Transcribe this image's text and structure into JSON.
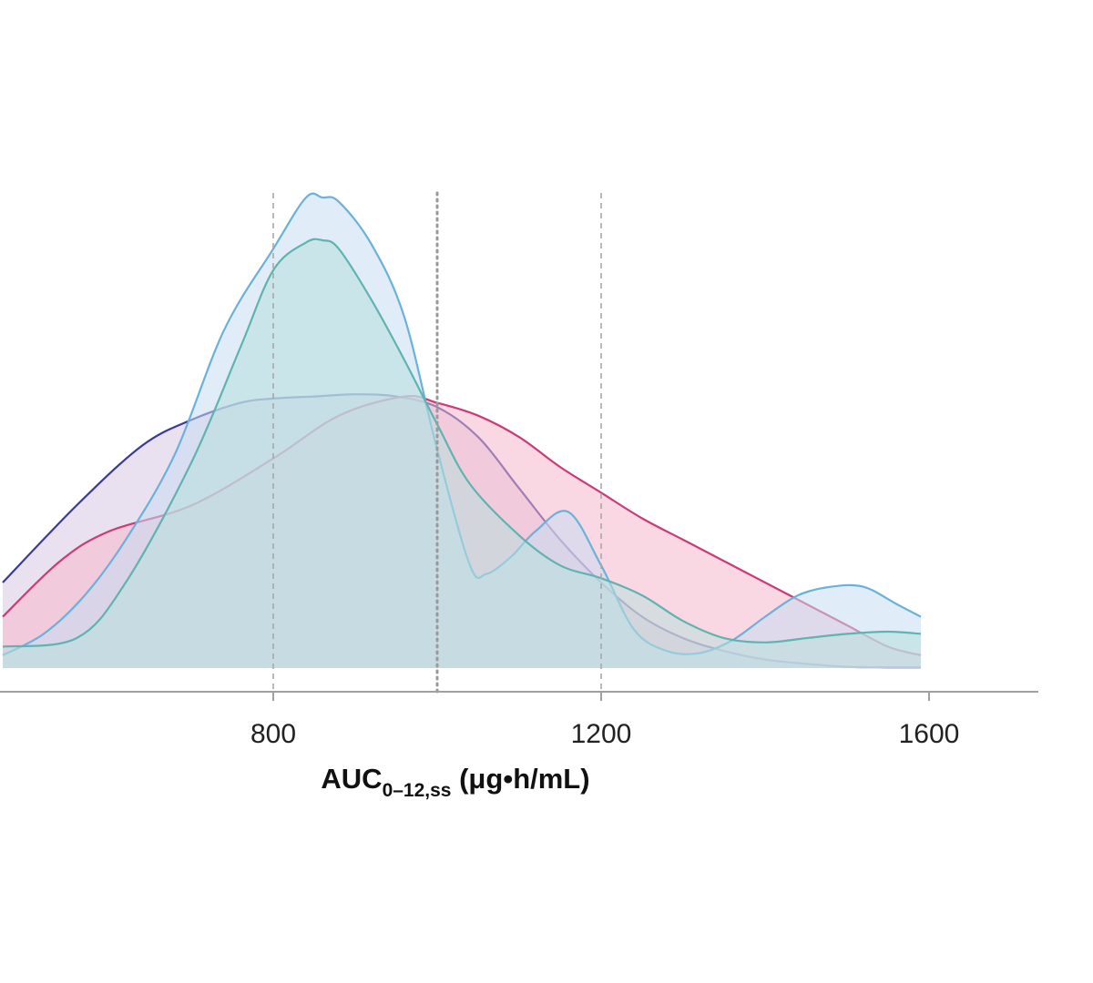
{
  "chart_data": {
    "type": "area",
    "xlabel": {
      "main": "AUC",
      "subscript": "0–12,ss",
      "unit": " (μg•h/mL)"
    },
    "xlim": [
      470,
      1600
    ],
    "x_ticks": [
      800,
      1200,
      1600
    ],
    "x_tick_labels": [
      "800",
      "1200",
      "1600"
    ],
    "reference_lines": [
      {
        "x": 800,
        "style": "dashed"
      },
      {
        "x": 1000,
        "style": "dotted"
      },
      {
        "x": 1200,
        "style": "dashed"
      }
    ],
    "series": [
      {
        "color": "#3a3a97",
        "fill": "#d8c8e4",
        "x": [
          470,
          560,
          640,
          700,
          760,
          800,
          850,
          900,
          950,
          1000,
          1050,
          1100,
          1150,
          1200,
          1250,
          1300,
          1350,
          1400,
          1450,
          1500,
          1550,
          1590
        ],
        "y": [
          0.2,
          0.38,
          0.52,
          0.58,
          0.62,
          0.63,
          0.635,
          0.64,
          0.635,
          0.61,
          0.54,
          0.42,
          0.3,
          0.2,
          0.12,
          0.07,
          0.04,
          0.02,
          0.01,
          0.003,
          0.002,
          0.002
        ]
      },
      {
        "color": "#cc3b77",
        "fill": "#f6b8cc",
        "x": [
          470,
          540,
          600,
          700,
          800,
          880,
          960,
          1000,
          1050,
          1100,
          1150,
          1200,
          1250,
          1300,
          1350,
          1400,
          1450,
          1500,
          1550,
          1590
        ],
        "y": [
          0.12,
          0.25,
          0.32,
          0.38,
          0.49,
          0.59,
          0.635,
          0.62,
          0.59,
          0.54,
          0.47,
          0.41,
          0.35,
          0.3,
          0.25,
          0.2,
          0.15,
          0.1,
          0.05,
          0.03
        ]
      },
      {
        "color": "#6ab2da",
        "fill": "#c6ddf3",
        "x": [
          470,
          520,
          570,
          620,
          680,
          740,
          800,
          840,
          860,
          880,
          920,
          960,
          1000,
          1040,
          1060,
          1090,
          1120,
          1160,
          1200,
          1240,
          1280,
          1320,
          1360,
          1400,
          1440,
          1480,
          1520,
          1560,
          1590
        ],
        "y": [
          0.03,
          0.08,
          0.17,
          0.3,
          0.5,
          0.79,
          0.98,
          1.1,
          1.1,
          1.09,
          0.99,
          0.82,
          0.51,
          0.24,
          0.22,
          0.26,
          0.32,
          0.365,
          0.24,
          0.09,
          0.04,
          0.035,
          0.065,
          0.12,
          0.17,
          0.19,
          0.19,
          0.15,
          0.12
        ]
      },
      {
        "color": "#5fb3b0",
        "fill": "#b8e0dc",
        "x": [
          470,
          560,
          620,
          700,
          760,
          800,
          840,
          860,
          880,
          920,
          960,
          1000,
          1040,
          1100,
          1150,
          1200,
          1250,
          1300,
          1350,
          1400,
          1450,
          1500,
          1550,
          1590
        ],
        "y": [
          0.05,
          0.07,
          0.2,
          0.48,
          0.75,
          0.93,
          0.995,
          1.0,
          0.98,
          0.86,
          0.72,
          0.57,
          0.43,
          0.31,
          0.24,
          0.21,
          0.17,
          0.11,
          0.07,
          0.06,
          0.07,
          0.08,
          0.085,
          0.08
        ]
      }
    ]
  }
}
